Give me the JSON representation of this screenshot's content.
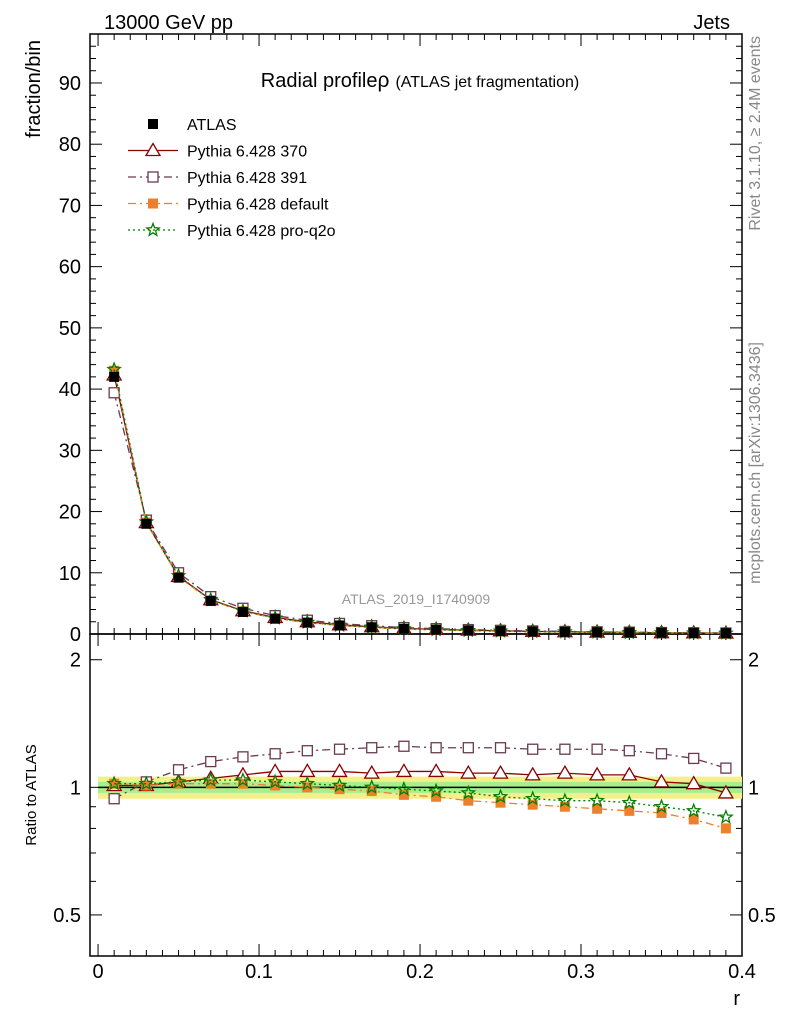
{
  "header": {
    "left": "13000 GeV pp",
    "right": "Jets"
  },
  "side_labels": {
    "rivet": "Rivet 3.1.10, ≥ 2.4M events",
    "mcplots": "mcplots.cern.ch [arXiv:1306.3436]"
  },
  "chart_data": [
    {
      "type": "line",
      "title": "Radial profile",
      "title_symbol": "ρ",
      "subtitle": "(ATLAS jet fragmentation)",
      "analysis_id": "ATLAS_2019_I1740909",
      "ylabel": "fraction/bin",
      "xlim": [
        -0.005,
        0.4
      ],
      "ylim": [
        0,
        98
      ],
      "yticks": [
        0,
        10,
        20,
        30,
        40,
        50,
        60,
        70,
        80,
        90
      ],
      "legend_position": "top-left",
      "x": [
        0.01,
        0.03,
        0.05,
        0.07,
        0.09,
        0.11,
        0.13,
        0.15,
        0.17,
        0.19,
        0.21,
        0.23,
        0.25,
        0.27,
        0.29,
        0.31,
        0.33,
        0.35,
        0.37,
        0.39
      ],
      "series": [
        {
          "name": "ATLAS",
          "color": "#000000",
          "marker": "square",
          "values": [
            42.0,
            18.0,
            9.2,
            5.4,
            3.6,
            2.5,
            1.85,
            1.4,
            1.1,
            0.85,
            0.7,
            0.58,
            0.48,
            0.4,
            0.34,
            0.29,
            0.24,
            0.2,
            0.17,
            0.14
          ]
        },
        {
          "name": "Pythia 6.428 370",
          "color": "#8b0000",
          "marker": "triangle-open",
          "line": "solid",
          "values": [
            42.3,
            18.2,
            9.4,
            5.6,
            3.8,
            2.7,
            2.0,
            1.5,
            1.18,
            0.92,
            0.76,
            0.63,
            0.52,
            0.43,
            0.37,
            0.31,
            0.26,
            0.21,
            0.18,
            0.14
          ]
        },
        {
          "name": "Pythia 6.428 391",
          "color": "#6b3a4e",
          "marker": "square-open",
          "line": "dashdot",
          "values": [
            39.4,
            18.6,
            10.0,
            6.1,
            4.2,
            3.0,
            2.25,
            1.72,
            1.35,
            1.05,
            0.87,
            0.72,
            0.6,
            0.5,
            0.42,
            0.36,
            0.3,
            0.24,
            0.2,
            0.16
          ]
        },
        {
          "name": "Pythia 6.428 default",
          "color": "#f07f2a",
          "marker": "square",
          "line": "dashdot",
          "values": [
            43.0,
            18.2,
            9.3,
            5.5,
            3.7,
            2.55,
            1.85,
            1.38,
            1.07,
            0.82,
            0.67,
            0.55,
            0.45,
            0.37,
            0.31,
            0.26,
            0.21,
            0.18,
            0.145,
            0.11
          ]
        },
        {
          "name": "Pythia 6.428 pro-q2o",
          "color": "#008000",
          "marker": "star",
          "line": "dotted",
          "values": [
            43.2,
            18.3,
            9.5,
            5.6,
            3.75,
            2.6,
            1.9,
            1.42,
            1.1,
            0.84,
            0.68,
            0.56,
            0.46,
            0.38,
            0.32,
            0.27,
            0.22,
            0.18,
            0.15,
            0.12
          ]
        }
      ]
    },
    {
      "type": "line",
      "ylabel": "Ratio to ATLAS",
      "xlabel": "r",
      "xlim": [
        -0.005,
        0.4
      ],
      "ylim": [
        0.4,
        2.3
      ],
      "yticks": [
        0.5,
        1,
        2
      ],
      "xticks": [
        0,
        0.1,
        0.2,
        0.3,
        0.4
      ],
      "reference": 1,
      "uncertainty_band": {
        "inner": 0.03,
        "outer": 0.06
      },
      "x": [
        0.01,
        0.03,
        0.05,
        0.07,
        0.09,
        0.11,
        0.13,
        0.15,
        0.17,
        0.19,
        0.21,
        0.23,
        0.25,
        0.27,
        0.29,
        0.31,
        0.33,
        0.35,
        0.37,
        0.39
      ],
      "series": [
        {
          "name": "Pythia 6.428 370",
          "color": "#8b0000",
          "marker": "triangle-open",
          "line": "solid",
          "values": [
            1.01,
            1.01,
            1.03,
            1.05,
            1.07,
            1.09,
            1.09,
            1.09,
            1.08,
            1.09,
            1.09,
            1.08,
            1.08,
            1.07,
            1.08,
            1.07,
            1.07,
            1.03,
            1.02,
            0.97
          ]
        },
        {
          "name": "Pythia 6.428 391",
          "color": "#6b3a4e",
          "marker": "square-open",
          "line": "dashdot",
          "values": [
            0.94,
            1.03,
            1.1,
            1.15,
            1.18,
            1.2,
            1.22,
            1.23,
            1.24,
            1.25,
            1.24,
            1.24,
            1.24,
            1.23,
            1.23,
            1.23,
            1.22,
            1.2,
            1.17,
            1.11
          ]
        },
        {
          "name": "Pythia 6.428 default",
          "color": "#f07f2a",
          "marker": "square",
          "line": "dashdot",
          "values": [
            1.02,
            1.01,
            1.02,
            1.02,
            1.02,
            1.01,
            1.0,
            0.99,
            0.98,
            0.96,
            0.95,
            0.93,
            0.92,
            0.91,
            0.9,
            0.89,
            0.88,
            0.87,
            0.84,
            0.8
          ]
        },
        {
          "name": "Pythia 6.428 pro-q2o",
          "color": "#008000",
          "marker": "star",
          "line": "dotted",
          "values": [
            1.02,
            1.02,
            1.03,
            1.04,
            1.04,
            1.03,
            1.02,
            1.01,
            1.0,
            0.99,
            0.98,
            0.97,
            0.95,
            0.94,
            0.93,
            0.93,
            0.92,
            0.9,
            0.88,
            0.85
          ]
        }
      ]
    }
  ]
}
